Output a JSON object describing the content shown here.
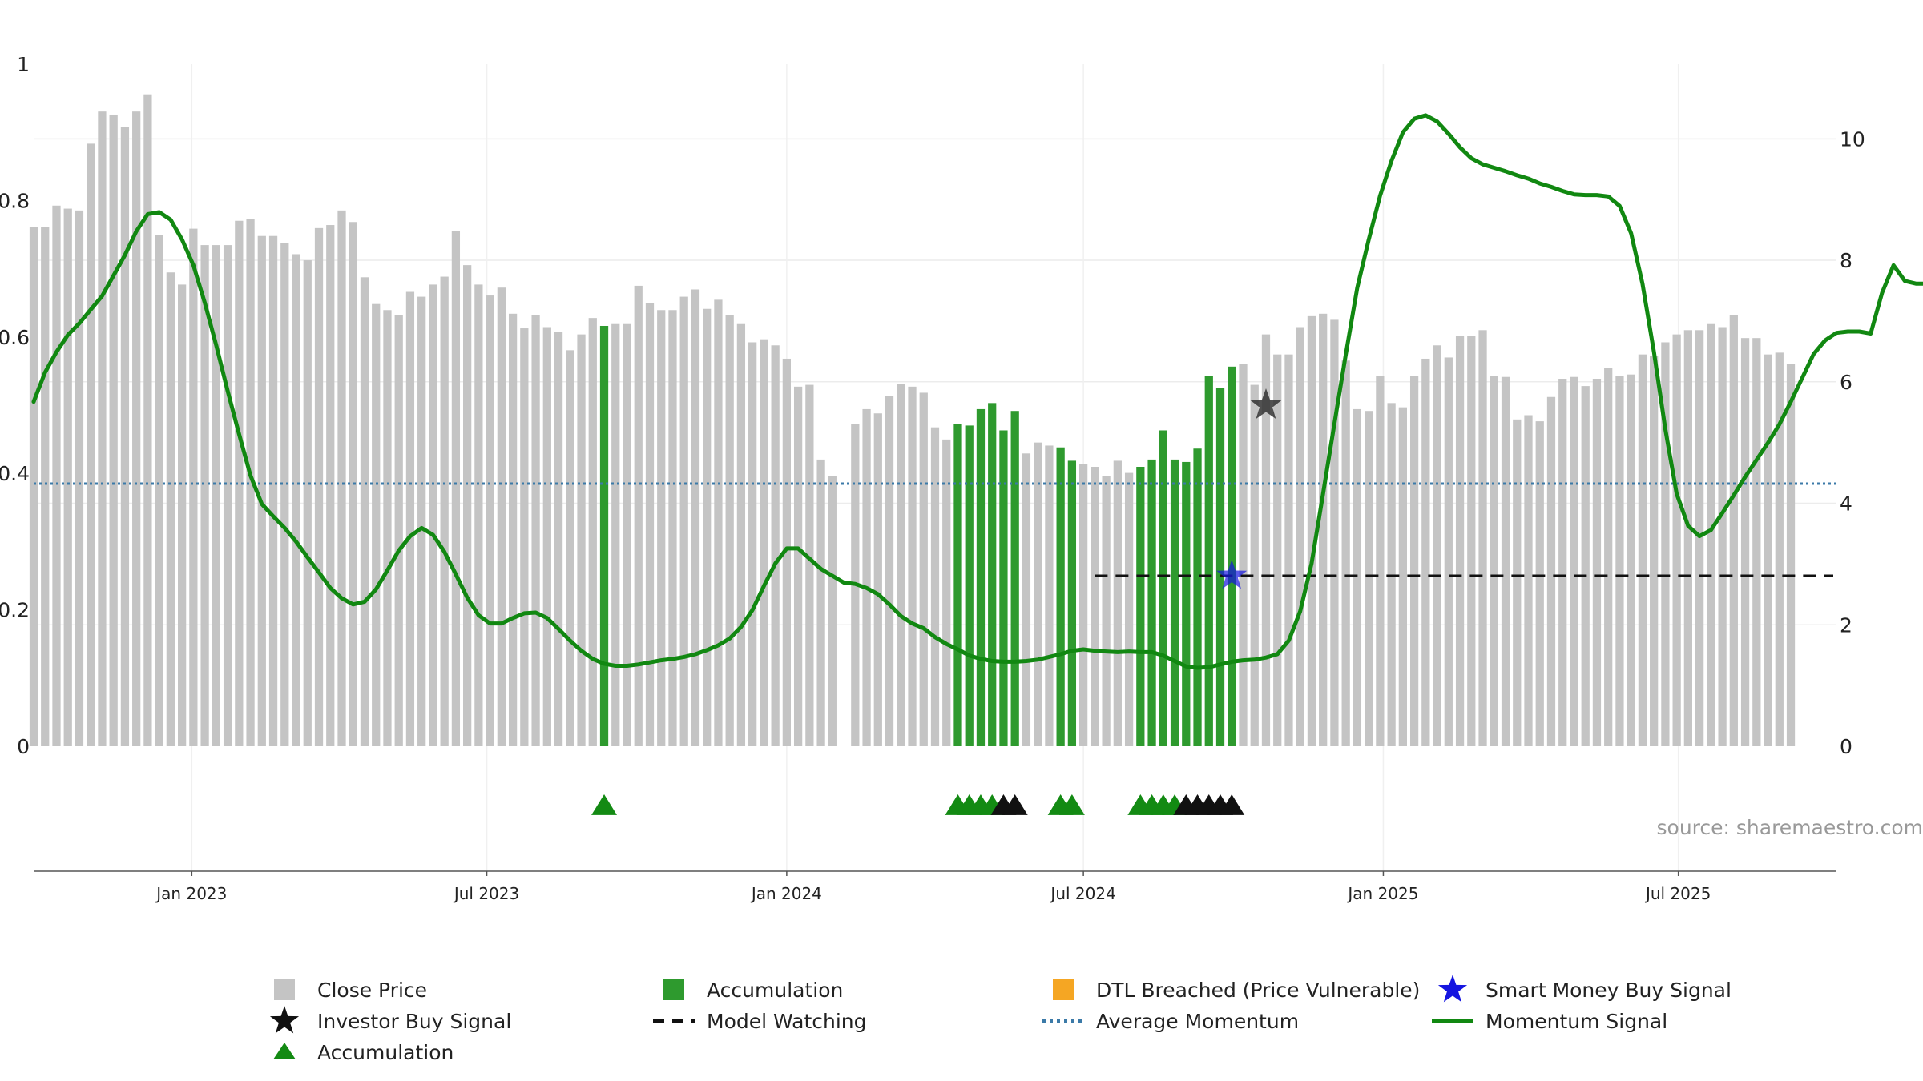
{
  "chart_data": {
    "type": "bar",
    "source": "source: sharemaestro.com",
    "left_axis": {
      "ylim": [
        0,
        1
      ],
      "ticks": [
        {
          "v": 0,
          "label": "0"
        },
        {
          "v": 0.2,
          "label": "0.2"
        },
        {
          "v": 0.4,
          "label": "0.4"
        },
        {
          "v": 0.6,
          "label": "0.6"
        },
        {
          "v": 0.8,
          "label": "0.8"
        },
        {
          "v": 1,
          "label": "1"
        }
      ]
    },
    "right_axis": {
      "ylim": [
        0,
        11.23
      ],
      "ticks": [
        {
          "v": 0,
          "label": "0"
        },
        {
          "v": 2,
          "label": "2"
        },
        {
          "v": 4,
          "label": "4"
        },
        {
          "v": 6,
          "label": "6"
        },
        {
          "v": 8,
          "label": "8"
        },
        {
          "v": 10,
          "label": "10"
        }
      ]
    },
    "x_axis": {
      "range": [
        "2022-09-26",
        "2025-10-06"
      ],
      "ticks": [
        {
          "date": "2023-01-01",
          "label": "Jan 2023"
        },
        {
          "date": "2023-07-01",
          "label": "Jul 2023"
        },
        {
          "date": "2024-01-01",
          "label": "Jan 2024"
        },
        {
          "date": "2024-07-01",
          "label": "Jul 2024"
        },
        {
          "date": "2025-01-01",
          "label": "Jan 2025"
        },
        {
          "date": "2025-07-01",
          "label": "Jul 2025"
        }
      ]
    },
    "grid": true,
    "legend_placement": "bottom",
    "colors": {
      "close_price": "#c4c4c4",
      "accumulation": "#2e9a2e",
      "accumulation_marker": "#138a13",
      "momentum": "#118811",
      "average_momentum": "#3b7aa8",
      "model_watching": "#111111",
      "investor_buy": "#333333",
      "smart_money": "#1515e0",
      "dtl": "#f5a623"
    },
    "series": [
      {
        "name": "Close Price",
        "start_date": "2022-09-26",
        "interval_days": 7,
        "values": [
          8.55,
          8.55,
          8.9,
          8.85,
          8.82,
          9.92,
          10.45,
          10.4,
          10.2,
          10.45,
          10.72,
          8.42,
          7.8,
          7.6,
          8.52,
          8.25,
          8.25,
          8.25,
          8.65,
          8.68,
          8.4,
          8.4,
          8.28,
          8.1,
          8.0,
          8.53,
          8.58,
          8.82,
          8.63,
          7.72,
          7.28,
          7.18,
          7.1,
          7.48,
          7.4,
          7.6,
          7.73,
          8.48,
          7.92,
          7.6,
          7.42,
          7.55,
          7.12,
          6.88,
          7.1,
          6.9,
          6.82,
          6.52,
          6.78,
          7.05,
          6.92,
          6.95,
          6.95,
          7.58,
          7.3,
          7.18,
          7.18,
          7.4,
          7.52,
          7.2,
          7.35,
          7.1,
          6.95,
          6.65,
          6.7,
          6.6,
          6.38,
          5.92,
          5.95,
          4.72,
          4.45,
          0,
          5.3,
          5.55,
          5.48,
          5.77,
          5.97,
          5.92,
          5.82,
          5.25,
          5.05,
          5.3,
          5.28,
          5.55,
          5.65,
          5.2,
          5.52,
          4.82,
          5.0,
          4.95,
          4.92,
          4.7,
          4.65,
          4.6,
          4.45,
          4.7,
          4.5,
          4.6,
          4.72,
          5.2,
          4.72,
          4.68,
          4.9,
          6.1,
          5.9,
          6.25,
          6.3,
          5.95,
          6.78,
          6.45,
          6.45,
          6.9,
          7.08,
          7.12,
          7.02,
          6.35,
          5.55,
          5.52,
          6.1,
          5.65,
          5.58,
          6.1,
          6.38,
          6.6,
          6.4,
          6.75,
          6.75,
          6.85,
          6.1,
          6.08,
          5.38,
          5.45,
          5.35,
          5.75,
          6.05,
          6.08,
          5.93,
          6.05,
          6.23,
          6.1,
          6.12,
          6.45,
          6.43,
          6.65,
          6.78,
          6.85,
          6.85,
          6.95,
          6.9,
          7.1,
          6.72,
          6.72,
          6.45,
          6.48,
          6.3
        ]
      },
      {
        "name": "Accumulation",
        "type": "bar",
        "indices": [
          50,
          81,
          82,
          83,
          84,
          85,
          86,
          90,
          91,
          97,
          98,
          99,
          100,
          101,
          102,
          103,
          104,
          105
        ]
      },
      {
        "name": "Momentum Signal",
        "type": "line",
        "start_date": "2022-09-26",
        "interval_days": 7,
        "values": [
          0.505,
          0.548,
          0.578,
          0.603,
          0.62,
          0.64,
          0.66,
          0.69,
          0.72,
          0.755,
          0.78,
          0.783,
          0.772,
          0.743,
          0.705,
          0.65,
          0.588,
          0.521,
          0.458,
          0.397,
          0.355,
          0.337,
          0.32,
          0.3,
          0.277,
          0.255,
          0.232,
          0.217,
          0.208,
          0.212,
          0.23,
          0.258,
          0.287,
          0.308,
          0.32,
          0.31,
          0.285,
          0.252,
          0.218,
          0.192,
          0.18,
          0.18,
          0.188,
          0.195,
          0.196,
          0.188,
          0.172,
          0.155,
          0.14,
          0.128,
          0.121,
          0.118,
          0.118,
          0.12,
          0.123,
          0.126,
          0.128,
          0.131,
          0.135,
          0.141,
          0.148,
          0.158,
          0.175,
          0.2,
          0.235,
          0.268,
          0.29,
          0.29,
          0.275,
          0.26,
          0.25,
          0.24,
          0.238,
          0.232,
          0.223,
          0.208,
          0.191,
          0.18,
          0.173,
          0.16,
          0.15,
          0.142,
          0.133,
          0.128,
          0.125,
          0.124,
          0.124,
          0.125,
          0.127,
          0.131,
          0.135,
          0.14,
          0.142,
          0.14,
          0.139,
          0.138,
          0.139,
          0.138,
          0.138,
          0.133,
          0.125,
          0.117,
          0.115,
          0.116,
          0.12,
          0.124,
          0.126,
          0.127,
          0.13,
          0.135,
          0.155,
          0.198,
          0.268,
          0.37,
          0.473,
          0.575,
          0.672,
          0.742,
          0.807,
          0.858,
          0.9,
          0.92,
          0.925,
          0.916,
          0.898,
          0.878,
          0.862,
          0.853,
          0.848,
          0.843,
          0.837,
          0.832,
          0.825,
          0.82,
          0.814,
          0.809,
          0.808,
          0.808,
          0.806,
          0.792,
          0.752,
          0.678,
          0.578,
          0.465,
          0.37,
          0.323,
          0.308,
          0.317,
          0.342,
          0.368,
          0.395,
          0.42,
          0.445,
          0.472,
          0.505,
          0.54,
          0.575,
          0.595,
          0.606,
          0.608,
          0.608,
          0.605,
          0.665,
          0.705,
          0.682,
          0.678,
          0.678,
          0.668
        ]
      },
      {
        "name": "Average Momentum",
        "type": "dotted_line",
        "value": 0.385
      },
      {
        "name": "Model Watching",
        "type": "dashed_line",
        "from_index": 98,
        "value": 0.25
      },
      {
        "name": "Accumulation",
        "type": "triangle_markers",
        "green_indices": [
          50,
          81,
          82,
          83,
          84,
          90,
          91,
          97,
          98,
          99,
          100
        ],
        "black_indices": [
          85,
          86,
          101,
          102,
          103,
          104,
          105
        ]
      },
      {
        "name": "Smart Money Buy Signal",
        "type": "star",
        "index": 105,
        "value": 0.25
      },
      {
        "name": "Investor Buy Signal",
        "type": "star",
        "index": 108,
        "value": 0.5
      }
    ],
    "legend": [
      {
        "name": "Close Price",
        "symbol": "square",
        "color_key": "close_price"
      },
      {
        "name": "Accumulation",
        "symbol": "square",
        "color_key": "accumulation"
      },
      {
        "name": "DTL Breached (Price Vulnerable)",
        "symbol": "square",
        "color_key": "dtl"
      },
      {
        "name": "Smart Money Buy Signal",
        "symbol": "star",
        "color_key": "smart_money"
      },
      {
        "name": "Investor Buy Signal",
        "symbol": "star",
        "color_key": "model_watching"
      },
      {
        "name": "Model Watching",
        "symbol": "dash",
        "color_key": "model_watching"
      },
      {
        "name": "Average Momentum",
        "symbol": "dot",
        "color_key": "average_momentum"
      },
      {
        "name": "Momentum Signal",
        "symbol": "line",
        "color_key": "momentum"
      },
      {
        "name": "Accumulation",
        "symbol": "triangle",
        "color_key": "accumulation_marker"
      }
    ]
  }
}
